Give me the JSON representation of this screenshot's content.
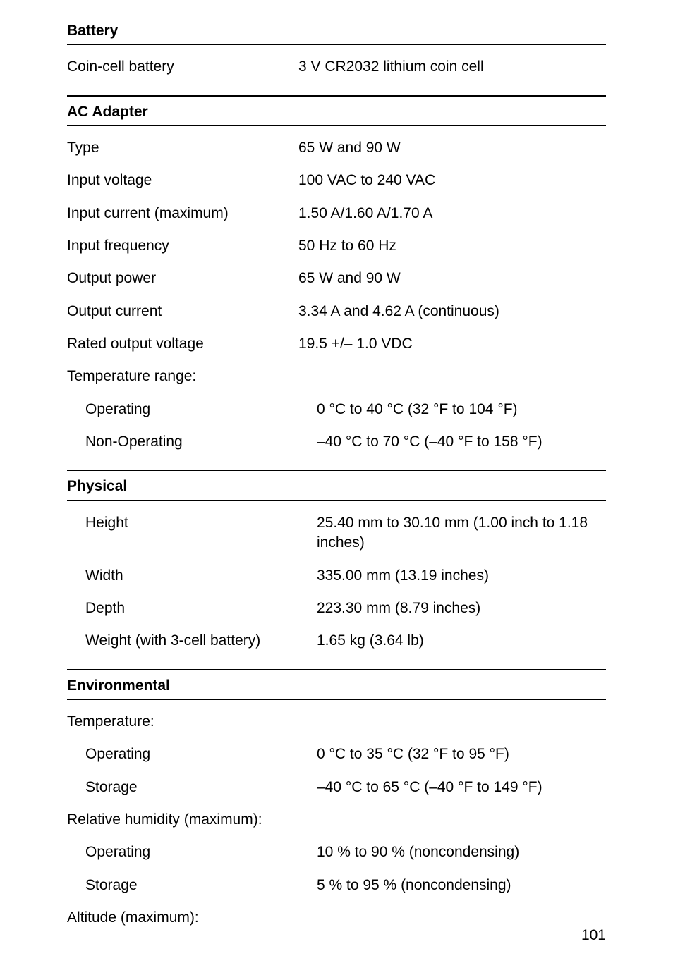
{
  "page_number": "101",
  "sections": {
    "battery": {
      "title": "Battery",
      "rows": [
        {
          "label": "Coin-cell battery",
          "value": "3 V CR2032 lithium coin cell",
          "indent": false
        }
      ]
    },
    "ac_adapter": {
      "title": "AC Adapter",
      "rows": [
        {
          "label": "Type",
          "value": "65 W and 90 W",
          "indent": false
        },
        {
          "label": "Input voltage",
          "value": "100 VAC to 240 VAC",
          "indent": false
        },
        {
          "label": "Input current (maximum)",
          "value": "1.50 A/1.60 A/1.70 A",
          "indent": false
        },
        {
          "label": "Input frequency",
          "value": "50 Hz to 60 Hz",
          "indent": false
        },
        {
          "label": "Output power",
          "value": "65 W and 90 W",
          "indent": false
        },
        {
          "label": "Output current",
          "value": "3.34 A and 4.62 A (continuous)",
          "indent": false
        },
        {
          "label": "Rated output voltage",
          "value": "19.5 +/– 1.0 VDC",
          "indent": false
        },
        {
          "label": "Temperature range:",
          "value": "",
          "indent": false
        },
        {
          "label": "Operating",
          "value": "0 °C to 40 °C (32 °F to 104 °F)",
          "indent": true
        },
        {
          "label": "Non-Operating",
          "value": "–40 °C to 70 °C (–40 °F to 158 °F)",
          "indent": true
        }
      ]
    },
    "physical": {
      "title": "Physical",
      "rows": [
        {
          "label": "Height",
          "value": "25.40 mm to 30.10 mm (1.00 inch to 1.18 inches)",
          "indent": true
        },
        {
          "label": "Width",
          "value": "335.00 mm (13.19 inches)",
          "indent": true
        },
        {
          "label": "Depth",
          "value": "223.30 mm (8.79 inches)",
          "indent": true
        },
        {
          "label": "Weight (with 3-cell battery)",
          "value": "1.65 kg (3.64 lb)",
          "indent": true
        }
      ]
    },
    "environmental": {
      "title": "Environmental",
      "rows": [
        {
          "label": "Temperature:",
          "value": "",
          "indent": false
        },
        {
          "label": "Operating",
          "value": "0 °C to 35 °C (32 °F to 95 °F)",
          "indent": true
        },
        {
          "label": "Storage",
          "value": "–40 °C to 65 °C (–40 °F to 149 °F)",
          "indent": true
        },
        {
          "label": "Relative humidity (maximum):",
          "value": "",
          "indent": false
        },
        {
          "label": "Operating",
          "value": "10 % to 90 % (noncondensing)",
          "indent": true
        },
        {
          "label": "Storage",
          "value": "5 % to 95 % (noncondensing)",
          "indent": true
        },
        {
          "label": "Altitude (maximum):",
          "value": "",
          "indent": false
        }
      ]
    }
  }
}
